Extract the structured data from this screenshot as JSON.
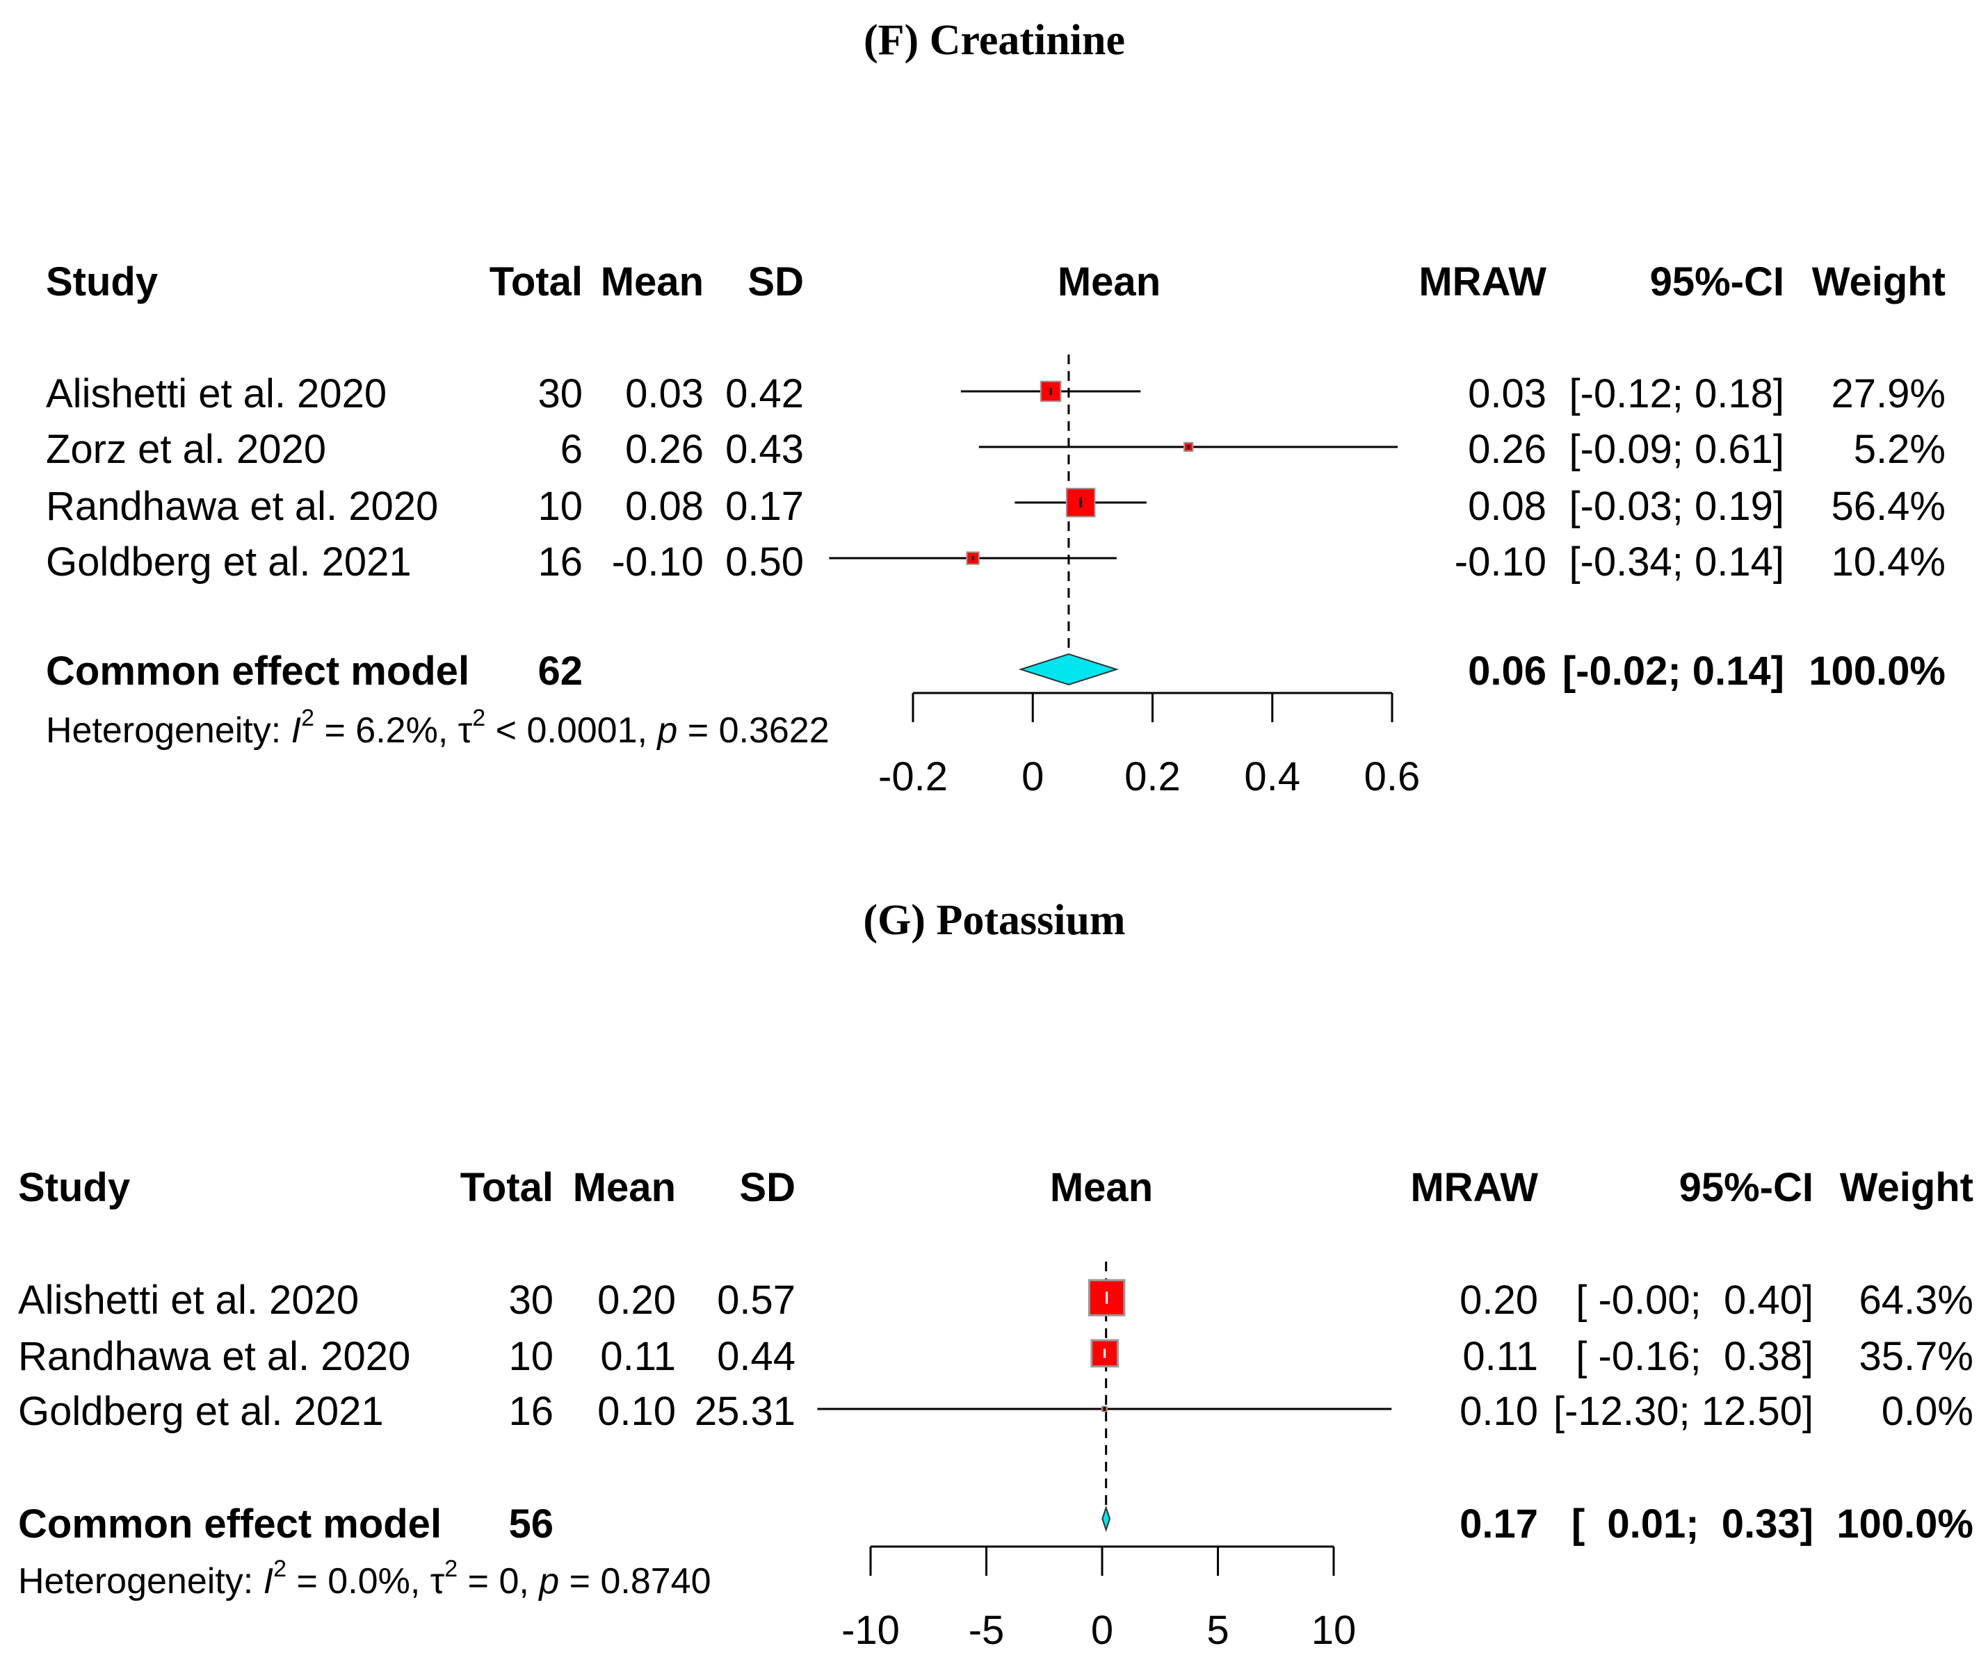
{
  "chart_data": [
    {
      "type": "forest",
      "title": "(F) Creatinine",
      "headers": {
        "study": "Study",
        "total": "Total",
        "mean": "Mean",
        "sd": "SD",
        "plot": "Mean",
        "mraw": "MRAW",
        "ci": "95%-CI",
        "weight": "Weight"
      },
      "studies": [
        {
          "name": "Alishetti et al. 2020",
          "total": "30",
          "mean": "0.03",
          "sd": "0.42",
          "mraw_label": "0.03",
          "ci_label": "[-0.12; 0.18]",
          "weight_label": "27.9%",
          "est": 0.03,
          "lo": -0.12,
          "hi": 0.18,
          "weight": 27.9
        },
        {
          "name": "Zorz et al. 2020",
          "total": "6",
          "mean": "0.26",
          "sd": "0.43",
          "mraw_label": "0.26",
          "ci_label": "[-0.09; 0.61]",
          "weight_label": "5.2%",
          "est": 0.26,
          "lo": -0.09,
          "hi": 0.61,
          "weight": 5.2
        },
        {
          "name": "Randhawa et al. 2020",
          "total": "10",
          "mean": "0.08",
          "sd": "0.17",
          "mraw_label": "0.08",
          "ci_label": "[-0.03; 0.19]",
          "weight_label": "56.4%",
          "est": 0.08,
          "lo": -0.03,
          "hi": 0.19,
          "weight": 56.4
        },
        {
          "name": "Goldberg et al. 2021",
          "total": "16",
          "mean": "-0.10",
          "sd": "0.50",
          "mraw_label": "-0.10",
          "ci_label": "[-0.34; 0.14]",
          "weight_label": "10.4%",
          "est": -0.1,
          "lo": -0.34,
          "hi": 0.14,
          "weight": 10.4
        }
      ],
      "summary": {
        "name": "Common effect model",
        "total": "62",
        "mraw_label": "0.06",
        "ci_label": "[-0.02; 0.14]",
        "weight_label": "100.0%",
        "est": 0.06,
        "lo": -0.02,
        "hi": 0.14
      },
      "heterogeneity": {
        "prefix": "Heterogeneity: ",
        "i2_sym": "I",
        "i2_sup": "2",
        "i2_val": " = 6.2%, ",
        "tau_sym": "τ",
        "tau_sup": "2",
        "tau_val": " < 0.0001, ",
        "p_sym": "p",
        "p_val": " = 0.3622"
      },
      "xaxis": {
        "min": -0.2,
        "max": 0.6,
        "ticks": [
          -0.2,
          0,
          0.2,
          0.4,
          0.6
        ],
        "tick_labels": [
          "-0.2",
          "0",
          "0.2",
          "0.4",
          "0.6"
        ]
      },
      "colors": {
        "box": "#ff0000",
        "diamond": "#00e5ee",
        "line": "#000000"
      }
    },
    {
      "type": "forest",
      "title": "(G) Potassium",
      "headers": {
        "study": "Study",
        "total": "Total",
        "mean": "Mean",
        "sd": "SD",
        "plot": "Mean",
        "mraw": "MRAW",
        "ci": "95%-CI",
        "weight": "Weight"
      },
      "studies": [
        {
          "name": "Alishetti et al. 2020",
          "total": "30",
          "mean": "0.20",
          "sd": "0.57",
          "mraw_label": "0.20",
          "ci_label": "[ -0.00;  0.40]",
          "weight_label": "64.3%",
          "est": 0.2,
          "lo": -0.0,
          "hi": 0.4,
          "weight": 64.3
        },
        {
          "name": "Randhawa et al. 2020",
          "total": "10",
          "mean": "0.11",
          "sd": "0.44",
          "mraw_label": "0.11",
          "ci_label": "[ -0.16;  0.38]",
          "weight_label": "35.7%",
          "est": 0.11,
          "lo": -0.16,
          "hi": 0.38,
          "weight": 35.7
        },
        {
          "name": "Goldberg et al. 2021",
          "total": "16",
          "mean": "0.10",
          "sd": "25.31",
          "mraw_label": "0.10",
          "ci_label": "[-12.30; 12.50]",
          "weight_label": "0.0%",
          "est": 0.1,
          "lo": -12.3,
          "hi": 12.5,
          "weight": 0.0
        }
      ],
      "summary": {
        "name": "Common effect model",
        "total": "56",
        "mraw_label": "0.17",
        "ci_label": "[  0.01;  0.33]",
        "weight_label": "100.0%",
        "est": 0.17,
        "lo": 0.01,
        "hi": 0.33
      },
      "heterogeneity": {
        "prefix": "Heterogeneity: ",
        "i2_sym": "I",
        "i2_sup": "2",
        "i2_val": " = 0.0%, ",
        "tau_sym": "τ",
        "tau_sup": "2",
        "tau_val": " = 0, ",
        "p_sym": "p",
        "p_val": " = 0.8740"
      },
      "xaxis": {
        "min": -10,
        "max": 10,
        "ticks": [
          -10,
          -5,
          0,
          5,
          10
        ],
        "tick_labels": [
          "-10",
          "-5",
          "0",
          "5",
          "10"
        ]
      },
      "colors": {
        "box": "#ff0000",
        "diamond": "#00e5ee",
        "line": "#000000"
      }
    }
  ]
}
